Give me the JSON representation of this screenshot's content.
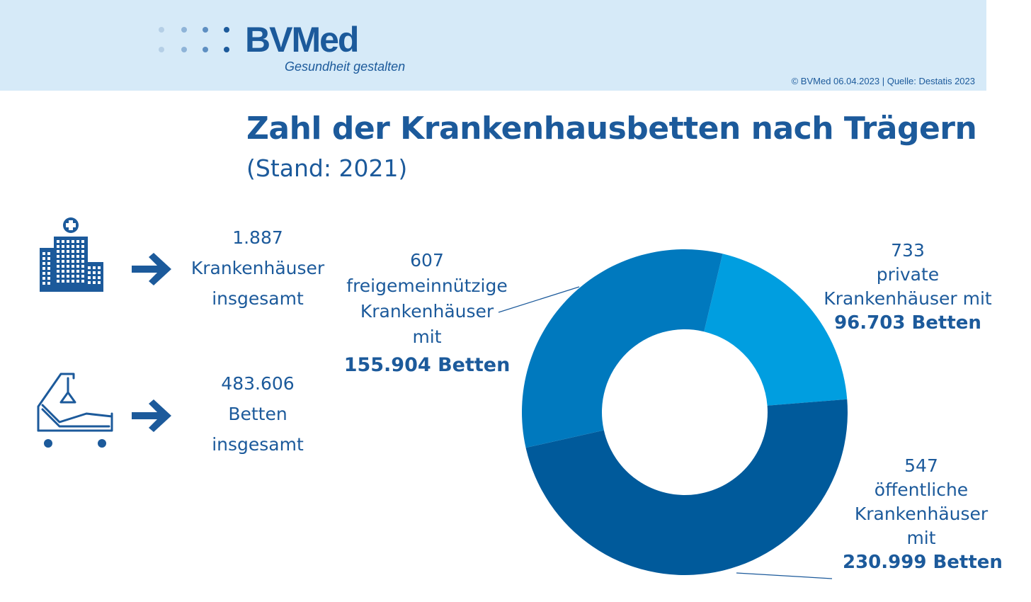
{
  "header": {
    "logo_text": "BVMed",
    "tagline": "Gesundheit gestalten",
    "credit": "© BVMed 06.04.2023 | Quelle: Destatis 2023"
  },
  "title": "Zahl der Krankenhausbetten nach Trägern",
  "subtitle": "(Stand: 2021)",
  "stats": {
    "hospitals": {
      "value": "1.887",
      "line1": "Krankenhäuser",
      "line2": "insgesamt"
    },
    "beds": {
      "value": "483.606",
      "line1": "Betten",
      "line2": "insgesamt"
    }
  },
  "icons": {
    "hospital": "hospital-building-icon",
    "bed": "hospital-bed-icon",
    "arrow": "arrow-right-icon"
  },
  "chart_data": {
    "type": "pie",
    "style": "donut",
    "title": "Zahl der Krankenhausbetten nach Trägern",
    "subtitle": "(Stand: 2021)",
    "unit": "Betten",
    "slices": [
      {
        "count": "733",
        "line1": "private",
        "line2": "Krankenhäuser mit",
        "beds_label": "96.703 Betten",
        "value": 96703,
        "color": "#009ee0"
      },
      {
        "count": "547",
        "line1": "öffentliche",
        "line2": "Krankenhäuser",
        "line3": "mit",
        "beds_label": "230.999 Betten",
        "value": 230999,
        "color": "#005a9b"
      },
      {
        "count": "607",
        "line1": "freigemeinnützige",
        "line2": "Krankenhäuser",
        "line3": "mit",
        "beds_label": "155.904 Betten",
        "value": 155904,
        "color": "#0079be"
      }
    ]
  }
}
